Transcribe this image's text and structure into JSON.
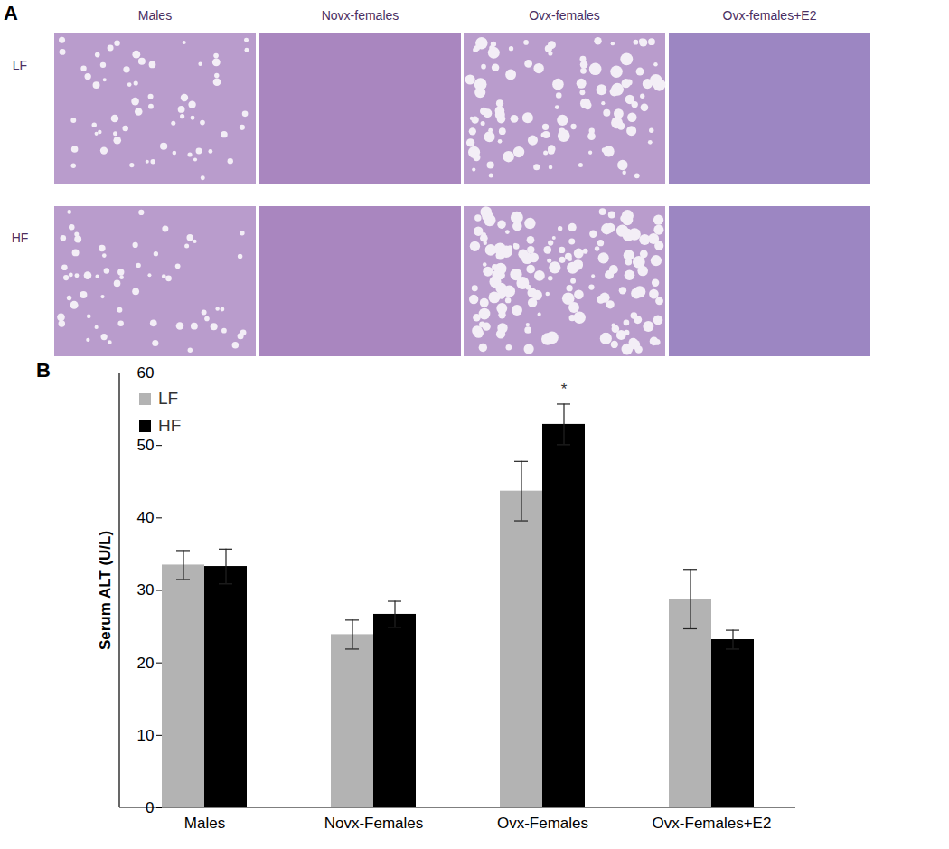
{
  "panel_a": {
    "label": "A",
    "columns": [
      "Males",
      "Novx-females",
      "Ovx-females",
      "Ovx-females+E2"
    ],
    "rows": [
      "LF",
      "HF"
    ]
  },
  "chart_data": {
    "type": "bar",
    "panel_label": "B",
    "categories": [
      "Males",
      "Novx-Females",
      "Ovx-Females",
      "Ovx-Females+E2"
    ],
    "series": [
      {
        "name": "LF",
        "color": "#b3b3b3",
        "values": [
          33.5,
          23.9,
          43.7,
          28.8
        ],
        "errors": [
          2.0,
          2.0,
          4.1,
          4.1
        ]
      },
      {
        "name": "HF",
        "color": "#000000",
        "values": [
          33.3,
          26.7,
          52.9,
          23.2
        ],
        "errors": [
          2.4,
          1.8,
          2.8,
          1.3
        ]
      }
    ],
    "y_label": "Serum ALT (U/L)",
    "ylim": [
      0,
      60
    ],
    "yticks": [
      0,
      10,
      20,
      30,
      40,
      50,
      60
    ],
    "grid": false,
    "legend": "top-left",
    "annotations": [
      {
        "text": "*",
        "category": "Ovx-Females",
        "series": "HF"
      }
    ]
  }
}
